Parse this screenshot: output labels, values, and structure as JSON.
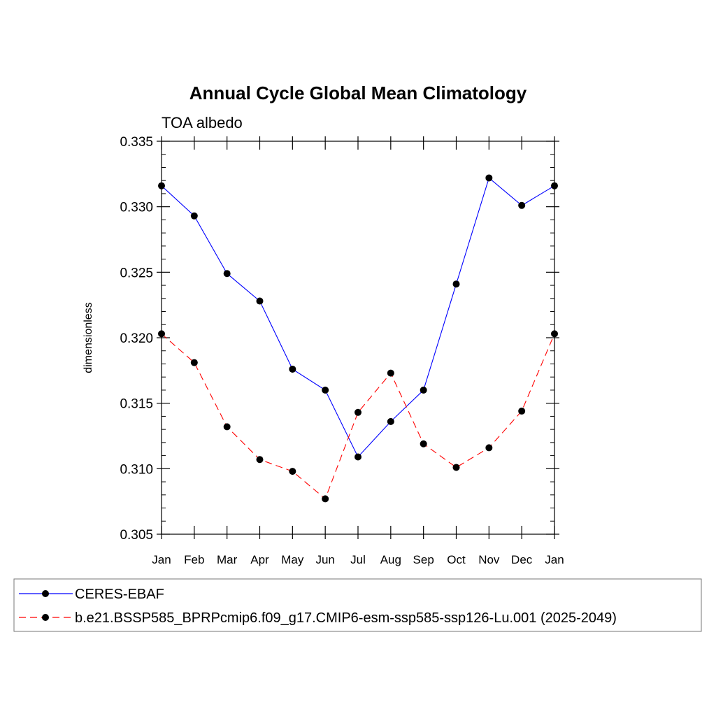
{
  "chart_data": {
    "type": "line",
    "title": "Annual Cycle Global Mean Climatology",
    "subtitle": "TOA albedo",
    "xlabel": "",
    "ylabel": "dimensionless",
    "categories": [
      "Jan",
      "Feb",
      "Mar",
      "Apr",
      "May",
      "Jun",
      "Jul",
      "Aug",
      "Sep",
      "Oct",
      "Nov",
      "Dec",
      "Jan"
    ],
    "ylim": [
      0.305,
      0.335
    ],
    "yticks": [
      "0.305",
      "0.310",
      "0.315",
      "0.320",
      "0.325",
      "0.330",
      "0.335"
    ],
    "ytick_values": [
      0.305,
      0.31,
      0.315,
      0.32,
      0.325,
      0.33,
      0.335
    ],
    "legend_position": "bottom",
    "series": [
      {
        "name": "CERES-EBAF",
        "color": "#0000ff",
        "line_style": "solid",
        "marker": "circle",
        "values": [
          0.3316,
          0.3293,
          0.3249,
          0.3228,
          0.3176,
          0.316,
          0.3109,
          0.3136,
          0.316,
          0.3241,
          0.3322,
          0.3301,
          0.3316
        ]
      },
      {
        "name": "b.e21.BSSP585_BPRPcmip6.f09_g17.CMIP6-esm-ssp585-ssp126-Lu.001 (2025-2049)",
        "color": "#ff0000",
        "line_style": "dashed",
        "marker": "circle",
        "values": [
          0.3203,
          0.3181,
          0.3132,
          0.3107,
          0.3098,
          0.3077,
          0.3143,
          0.3173,
          0.3119,
          0.3101,
          0.3116,
          0.3144,
          0.3203
        ]
      }
    ]
  }
}
